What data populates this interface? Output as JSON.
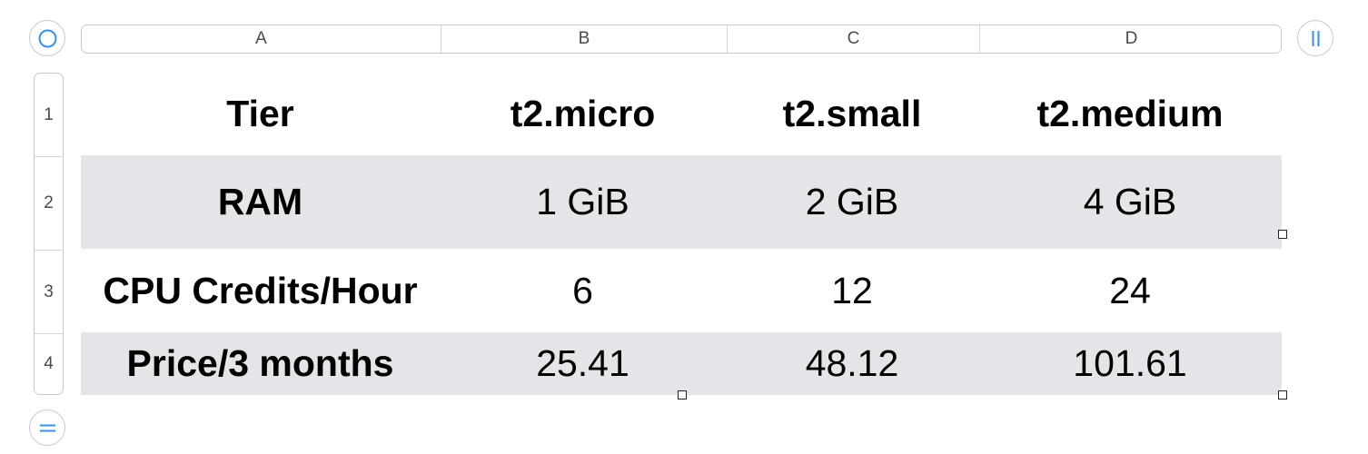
{
  "columns": [
    "A",
    "B",
    "C",
    "D"
  ],
  "rows": [
    "1",
    "2",
    "3",
    "4"
  ],
  "table": {
    "row1": [
      "Tier",
      "t2.micro",
      "t2.small",
      "t2.medium"
    ],
    "row2": [
      "RAM",
      "1 GiB",
      "2 GiB",
      "4 GiB"
    ],
    "row3": [
      "CPU Credits/Hour",
      "6",
      "12",
      "24"
    ],
    "row4": [
      "Price/3 months",
      "25.41",
      "48.12",
      "101.61"
    ]
  },
  "colors": {
    "shaded_row": "#e5e5e9",
    "control_accent": "#3a8fe0",
    "header_border": "#c9c9cc"
  },
  "icons": {
    "select_all": "circle-icon",
    "add_columns": "double-bar-icon",
    "add_rows": "equals-icon"
  }
}
